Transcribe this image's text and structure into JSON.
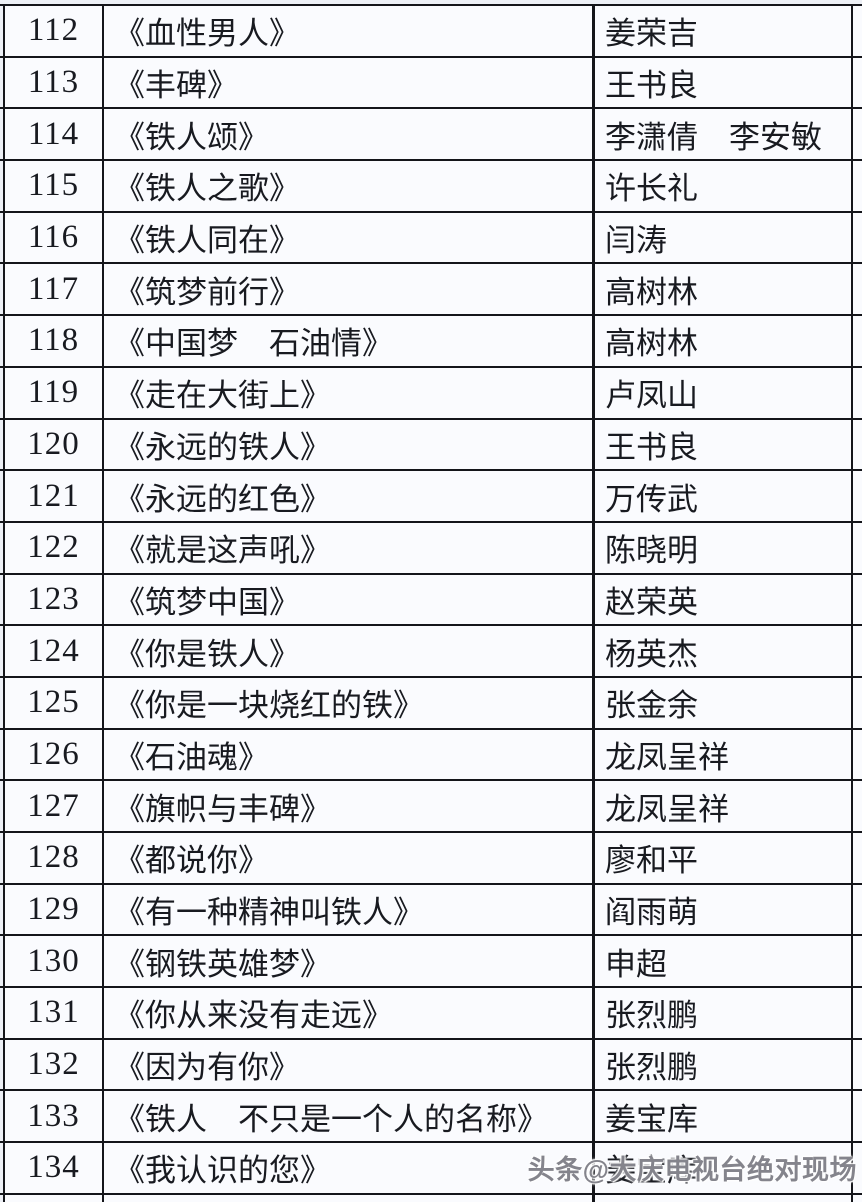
{
  "table": {
    "columns": [
      "number",
      "title",
      "author"
    ],
    "rows": [
      {
        "number": "112",
        "title": "《血性男人》",
        "author": "姜荣吉"
      },
      {
        "number": "113",
        "title": "《丰碑》",
        "author": "王书良"
      },
      {
        "number": "114",
        "title": "《铁人颂》",
        "author": "李潇倩　李安敏"
      },
      {
        "number": "115",
        "title": "《铁人之歌》",
        "author": "许长礼"
      },
      {
        "number": "116",
        "title": "《铁人同在》",
        "author": "闫涛"
      },
      {
        "number": "117",
        "title": "《筑梦前行》",
        "author": "高树林"
      },
      {
        "number": "118",
        "title": "《中国梦　石油情》",
        "author": "高树林"
      },
      {
        "number": "119",
        "title": "《走在大街上》",
        "author": "卢凤山"
      },
      {
        "number": "120",
        "title": "《永远的铁人》",
        "author": "王书良"
      },
      {
        "number": "121",
        "title": "《永远的红色》",
        "author": "万传武"
      },
      {
        "number": "122",
        "title": "《就是这声吼》",
        "author": "陈晓明"
      },
      {
        "number": "123",
        "title": "《筑梦中国》",
        "author": "赵荣英"
      },
      {
        "number": "124",
        "title": "《你是铁人》",
        "author": "杨英杰"
      },
      {
        "number": "125",
        "title": "《你是一块烧红的铁》",
        "author": "张金余"
      },
      {
        "number": "126",
        "title": "《石油魂》",
        "author": "龙凤呈祥"
      },
      {
        "number": "127",
        "title": "《旗帜与丰碑》",
        "author": "龙凤呈祥"
      },
      {
        "number": "128",
        "title": "《都说你》",
        "author": "廖和平"
      },
      {
        "number": "129",
        "title": "《有一种精神叫铁人》",
        "author": "阎雨萌"
      },
      {
        "number": "130",
        "title": "《钢铁英雄梦》",
        "author": "申超"
      },
      {
        "number": "131",
        "title": "《你从来没有走远》",
        "author": "张烈鹏"
      },
      {
        "number": "132",
        "title": "《因为有你》",
        "author": "张烈鹏"
      },
      {
        "number": "133",
        "title": "《铁人　不只是一个人的名称》",
        "author": "姜宝库"
      },
      {
        "number": "134",
        "title": "《我认识的您》",
        "author": "姜宝库"
      }
    ]
  },
  "watermark": {
    "text": "头条@大庆电视台绝对现场"
  },
  "colors": {
    "page_background": "#edf0f6",
    "cell_background": "#fafbfe",
    "border": "#14151a",
    "text": "#181a20",
    "watermark": "#84848c"
  }
}
